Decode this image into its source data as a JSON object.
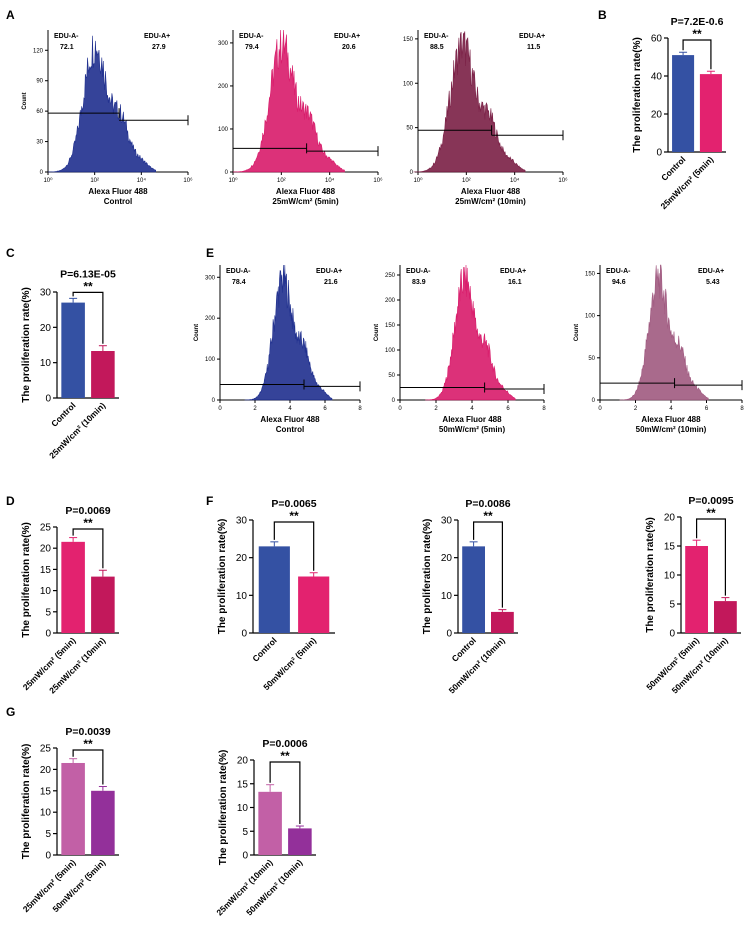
{
  "figure": {
    "panel_labels": [
      "A",
      "B",
      "C",
      "E",
      "D",
      "F",
      "G"
    ],
    "strings": {
      "count": "Count",
      "x_axis": "Alexa Fluor 488",
      "edu_neg": "EDU-A-",
      "edu_pos": "EDU-A+",
      "rate": "The proliferation rate(%)",
      "sig": "**"
    }
  },
  "colors": {
    "navy": "#1f2f8e",
    "pink": "#d81b6a",
    "wine": "#7a1f45",
    "mauve": "#a05a80",
    "bar_blue": "#3451a3",
    "bar_pink": "#e3226f",
    "bar_magenta": "#c2185b",
    "bar_orchid": "#c260a6",
    "bar_purple": "#93309a"
  },
  "chart_data": [
    {
      "id": "A1",
      "panel": "A",
      "type": "histogram",
      "xlabel": "Alexa Fluor 488",
      "condition": "Control",
      "ylabel": "Count",
      "yticks": [
        0,
        30,
        60,
        90,
        120
      ],
      "ylim": [
        0,
        140
      ],
      "xticks": [
        "10⁰",
        "10²",
        "10⁴",
        "10⁶"
      ],
      "peak_log": 2.2,
      "gate_log": 3.3,
      "gate_y": 58,
      "edu_neg_pct": "72.1",
      "edu_pos_pct": "27.9",
      "color": "navy"
    },
    {
      "id": "A2",
      "panel": "A",
      "type": "histogram",
      "xlabel": "Alexa Fluor 488",
      "condition": "25mW/cm² (5min)",
      "ylabel": "",
      "yticks": [
        0,
        100,
        200,
        300
      ],
      "ylim": [
        0,
        330
      ],
      "xticks": [
        "10⁰",
        "10²",
        "10⁴",
        "10⁶"
      ],
      "peak_log": 2.2,
      "gate_log": 3.3,
      "gate_y": 55,
      "edu_neg_pct": "79.4",
      "edu_pos_pct": "20.6",
      "color": "pink"
    },
    {
      "id": "A3",
      "panel": "A",
      "type": "histogram",
      "xlabel": "Alexa Fluor 488",
      "condition": "25mW/cm² (10min)",
      "ylabel": "",
      "yticks": [
        0,
        50,
        100,
        150
      ],
      "ylim": [
        0,
        160
      ],
      "xticks": [
        "10⁰",
        "10²",
        "10⁴",
        "10⁶"
      ],
      "peak_log": 2.0,
      "gate_log": 3.3,
      "gate_y": 47,
      "edu_neg_pct": "88.5",
      "edu_pos_pct": "11.5",
      "color": "wine"
    },
    {
      "id": "E1",
      "panel": "E",
      "type": "histogram",
      "xlabel": "Alexa Fluor 488",
      "condition": "Control",
      "ylabel": "Count",
      "yticks": [
        0,
        100,
        200,
        300
      ],
      "ylim": [
        0,
        330
      ],
      "xticks": [
        "0",
        "2",
        "4",
        "6",
        "8"
      ],
      "peak_log": 3.6,
      "gate_log": 4.8,
      "gate_y": 38,
      "edu_neg_pct": "78.4",
      "edu_pos_pct": "21.6",
      "color": "navy"
    },
    {
      "id": "E2",
      "panel": "E",
      "type": "histogram",
      "xlabel": "Alexa Fluor 488",
      "condition": "50mW/cm² (5min)",
      "ylabel": "Count",
      "yticks": [
        0,
        50,
        100,
        150,
        200,
        250
      ],
      "ylim": [
        0,
        270
      ],
      "xticks": [
        "0",
        "2",
        "4",
        "6",
        "8"
      ],
      "peak_log": 3.6,
      "gate_log": 4.7,
      "gate_y": 25,
      "edu_neg_pct": "83.9",
      "edu_pos_pct": "16.1",
      "color": "pink"
    },
    {
      "id": "E3",
      "panel": "E",
      "type": "histogram",
      "xlabel": "Alexa Fluor 488",
      "condition": "50mW/cm² (10min)",
      "ylabel": "Count",
      "yticks": [
        0,
        50,
        100,
        150
      ],
      "ylim": [
        0,
        160
      ],
      "xticks": [
        "0",
        "2",
        "4",
        "6",
        "8"
      ],
      "peak_log": 3.3,
      "gate_log": 4.2,
      "gate_y": 20,
      "edu_neg_pct": "94.6",
      "edu_pos_pct": "5.43",
      "color": "mauve"
    },
    {
      "id": "B",
      "panel": "B",
      "type": "bar",
      "title": "P=7.2E-0.6",
      "ylabel": "The proliferation rate(%)",
      "ylim": [
        0,
        60
      ],
      "yticks": [
        0,
        20,
        40,
        60
      ],
      "categories": [
        "Control",
        "25mW/cm² (5min)"
      ],
      "values": [
        51,
        41
      ],
      "errors": [
        1.5,
        1.5
      ],
      "bar_colors": [
        "bar_blue",
        "bar_pink"
      ],
      "significance": "**"
    },
    {
      "id": "C",
      "panel": "C",
      "type": "bar",
      "title": "P=6.13E-05",
      "ylabel": "The proliferation rate(%)",
      "ylim": [
        0,
        30
      ],
      "yticks": [
        0,
        10,
        20,
        30
      ],
      "categories": [
        "Control",
        "25mW/cm² (10min)"
      ],
      "values": [
        27,
        13.3
      ],
      "errors": [
        1.2,
        1.5
      ],
      "bar_colors": [
        "bar_blue",
        "bar_magenta"
      ],
      "significance": "**"
    },
    {
      "id": "D",
      "panel": "D",
      "type": "bar",
      "title": "P=0.0069",
      "ylabel": "The proliferation rate(%)",
      "ylim": [
        0,
        25
      ],
      "yticks": [
        0,
        5,
        10,
        15,
        20,
        25
      ],
      "categories": [
        "25mW/cm² (5min)",
        "25mW/cm² (10min)"
      ],
      "values": [
        21.5,
        13.3
      ],
      "errors": [
        1.0,
        1.5
      ],
      "bar_colors": [
        "bar_pink",
        "bar_magenta"
      ],
      "significance": "**"
    },
    {
      "id": "F1",
      "panel": "F",
      "type": "bar",
      "title": "P=0.0065",
      "ylabel": "The proliferation rate(%)",
      "ylim": [
        0,
        30
      ],
      "yticks": [
        0,
        10,
        20,
        30
      ],
      "categories": [
        "Control",
        "50mW/cm² (5min)"
      ],
      "values": [
        23,
        15
      ],
      "errors": [
        1.2,
        1.0
      ],
      "bar_colors": [
        "bar_blue",
        "bar_pink"
      ],
      "significance": "**"
    },
    {
      "id": "F2",
      "panel": "F",
      "type": "bar",
      "title": "P=0.0086",
      "ylabel": "The proliferation rate(%)",
      "ylim": [
        0,
        30
      ],
      "yticks": [
        0,
        10,
        20,
        30
      ],
      "categories": [
        "Control",
        "50mW/cm² (10min)"
      ],
      "values": [
        23,
        5.6
      ],
      "errors": [
        1.2,
        0.6
      ],
      "bar_colors": [
        "bar_blue",
        "bar_magenta"
      ],
      "significance": "**"
    },
    {
      "id": "F3",
      "panel": "F",
      "type": "bar",
      "title": "P=0.0095",
      "ylabel": "The proliferation rate(%)",
      "ylim": [
        0,
        20
      ],
      "yticks": [
        0,
        5,
        10,
        15,
        20
      ],
      "categories": [
        "50mW/cm² (5min)",
        "50mW/cm² (10min)"
      ],
      "values": [
        15,
        5.5
      ],
      "errors": [
        1.0,
        0.6
      ],
      "bar_colors": [
        "bar_pink",
        "bar_magenta"
      ],
      "significance": "**"
    },
    {
      "id": "G1",
      "panel": "G",
      "type": "bar",
      "title": "P=0.0039",
      "ylabel": "The proliferation rate(%)",
      "ylim": [
        0,
        25
      ],
      "yticks": [
        0,
        5,
        10,
        15,
        20,
        25
      ],
      "categories": [
        "25mW/cm² (5min)",
        "50mW/cm² (5min)"
      ],
      "values": [
        21.5,
        15
      ],
      "errors": [
        1.0,
        1.0
      ],
      "bar_colors": [
        "bar_orchid",
        "bar_purple"
      ],
      "significance": "**"
    },
    {
      "id": "G2",
      "panel": "G",
      "type": "bar",
      "title": "P=0.0006",
      "ylabel": "The proliferation rate(%)",
      "ylim": [
        0,
        20
      ],
      "yticks": [
        0,
        5,
        10,
        15,
        20
      ],
      "categories": [
        "25mW/cm² (10min)",
        "50mW/cm² (10min)"
      ],
      "values": [
        13.3,
        5.6
      ],
      "errors": [
        1.5,
        0.5
      ],
      "bar_colors": [
        "bar_orchid",
        "bar_purple"
      ],
      "significance": "**"
    }
  ]
}
